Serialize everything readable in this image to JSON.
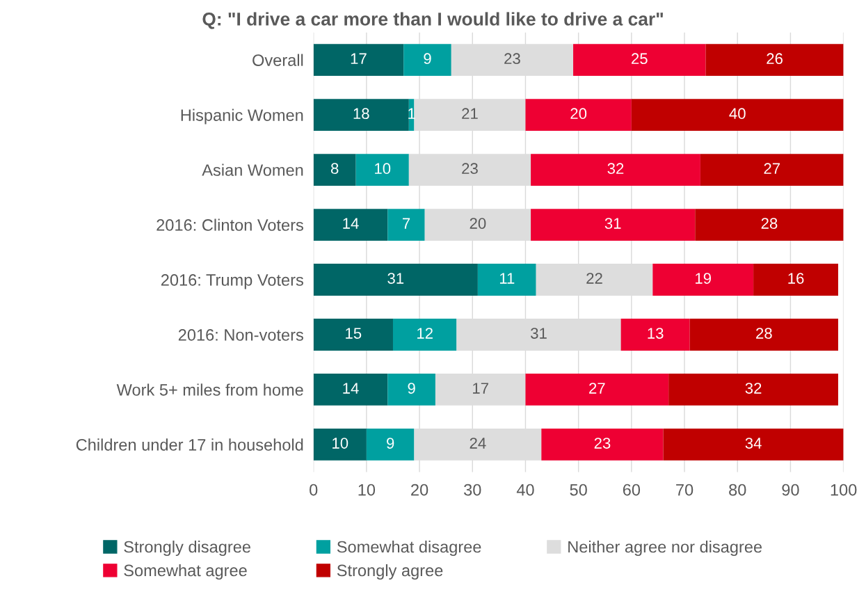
{
  "chart_data": {
    "type": "bar",
    "orientation": "horizontal",
    "stacked": true,
    "title": "Q: \"I drive a car more than I would like to drive a car\"",
    "categories": [
      "Overall",
      "Hispanic Women",
      "Asian Women",
      "2016: Clinton Voters",
      "2016: Trump Voters",
      "2016: Non-voters",
      "Work 5+ miles from home",
      "Children under 17 in household"
    ],
    "series": [
      {
        "name": "Strongly disagree",
        "color": "#006666",
        "values": [
          17,
          18,
          8,
          14,
          31,
          15,
          14,
          10
        ]
      },
      {
        "name": "Somewhat disagree",
        "color": "#00a0a0",
        "values": [
          9,
          1,
          10,
          7,
          11,
          12,
          9,
          9
        ]
      },
      {
        "name": "Neither agree nor disagree",
        "color": "#dddddd",
        "values": [
          23,
          21,
          23,
          20,
          22,
          31,
          17,
          24
        ]
      },
      {
        "name": "Somewhat agree",
        "color": "#ee0033",
        "values": [
          25,
          20,
          32,
          31,
          19,
          13,
          27,
          23
        ]
      },
      {
        "name": "Strongly agree",
        "color": "#c00000",
        "values": [
          26,
          40,
          27,
          28,
          16,
          28,
          32,
          34
        ]
      }
    ],
    "xlim": [
      0,
      100
    ],
    "xticks": [
      0,
      10,
      20,
      30,
      40,
      50,
      60,
      70,
      80,
      90,
      100
    ],
    "data_labels": true,
    "grid": "x",
    "legend": "bottom"
  }
}
